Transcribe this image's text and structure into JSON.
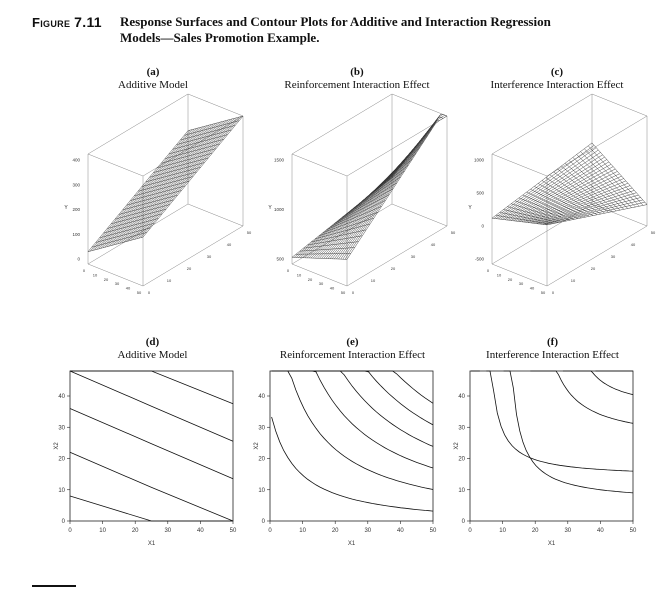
{
  "figure": {
    "label_prefix": "Figure",
    "number": "7.11",
    "caption": "Response Surfaces and Contour Plots for Additive and Interaction Regression Models—Sales Promotion Example."
  },
  "panels": [
    {
      "letter": "(a)",
      "title": "Additive Model"
    },
    {
      "letter": "(b)",
      "title": "Reinforcement Interaction Effect"
    },
    {
      "letter": "(c)",
      "title": "Interference Interaction Effect"
    },
    {
      "letter": "(d)",
      "title": "Additive Model"
    },
    {
      "letter": "(e)",
      "title": "Reinforcement Interaction Effect"
    },
    {
      "letter": "(f)",
      "title": "Interference Interaction Effect"
    }
  ],
  "chart_data": [
    {
      "type": "surface",
      "panel": "a",
      "zlabel": "Y",
      "zticks": [
        "400",
        "300",
        "200",
        "100",
        "0"
      ],
      "grid": "wireframe"
    },
    {
      "type": "surface",
      "panel": "b",
      "zlabel": "Y",
      "zticks": [
        "1500",
        "1000",
        "500"
      ],
      "grid": "wireframe"
    },
    {
      "type": "surface",
      "panel": "c",
      "zlabel": "Y",
      "zticks": [
        "1000",
        "500",
        "0",
        "-500"
      ],
      "grid": "wireframe"
    },
    {
      "type": "contour",
      "panel": "d",
      "xlabel": "X1",
      "ylabel": "X2",
      "xticks": [
        "0",
        "10",
        "20",
        "30",
        "40",
        "50"
      ],
      "yticks": [
        "0",
        "10",
        "20",
        "30",
        "40"
      ],
      "xlim": [
        0,
        50
      ],
      "ylim": [
        0,
        48
      ],
      "model": "additive"
    },
    {
      "type": "contour",
      "panel": "e",
      "xlabel": "X1",
      "ylabel": "X2",
      "xticks": [
        "0",
        "10",
        "20",
        "30",
        "40",
        "50"
      ],
      "yticks": [
        "0",
        "10",
        "20",
        "30",
        "40"
      ],
      "xlim": [
        0,
        50
      ],
      "ylim": [
        0,
        48
      ],
      "model": "reinforcement"
    },
    {
      "type": "contour",
      "panel": "f",
      "xlabel": "X1",
      "ylabel": "X2",
      "xticks": [
        "0",
        "10",
        "20",
        "30",
        "40",
        "50"
      ],
      "yticks": [
        "0",
        "10",
        "20",
        "30",
        "40"
      ],
      "xlim": [
        0,
        50
      ],
      "ylim": [
        0,
        48
      ],
      "model": "interference"
    }
  ]
}
